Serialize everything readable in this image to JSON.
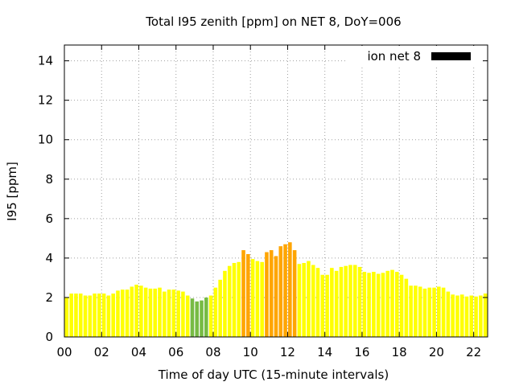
{
  "chart_data": {
    "type": "bar",
    "title": "Total I95 zenith [ppm] on NET 8, DoY=006",
    "xlabel": "Time of day UTC (15-minute intervals)",
    "ylabel": "I95 [ppm]",
    "xlim": [
      0,
      22.75
    ],
    "ylim": [
      0,
      14.8
    ],
    "xticks": [
      0,
      2,
      4,
      6,
      8,
      10,
      12,
      14,
      16,
      18,
      20,
      22
    ],
    "xtick_labels": [
      "00",
      "02",
      "04",
      "06",
      "08",
      "10",
      "12",
      "14",
      "16",
      "18",
      "20",
      "22"
    ],
    "yticks": [
      0,
      2,
      4,
      6,
      8,
      10,
      12,
      14
    ],
    "ytick_labels": [
      "0",
      "2",
      "4",
      "6",
      "8",
      "10",
      "12",
      "14"
    ],
    "grid": true,
    "legend": {
      "label": "ion net 8",
      "color": "#000000",
      "position": "top-right"
    },
    "bin_hours": 0.25,
    "colors": {
      "yellow": "#ffff00",
      "yellow_light": "#ffff33",
      "green": "#77bb44",
      "orange": "#ffa500"
    },
    "series": [
      {
        "name": "ion net 8",
        "x": [
          0,
          0.25,
          0.5,
          0.75,
          1,
          1.25,
          1.5,
          1.75,
          2,
          2.25,
          2.5,
          2.75,
          3,
          3.25,
          3.5,
          3.75,
          4,
          4.25,
          4.5,
          4.75,
          5,
          5.25,
          5.5,
          5.75,
          6,
          6.25,
          6.5,
          6.75,
          7,
          7.25,
          7.5,
          7.75,
          8,
          8.25,
          8.5,
          8.75,
          9,
          9.25,
          9.5,
          9.75,
          10,
          10.25,
          10.5,
          10.75,
          11,
          11.25,
          11.5,
          11.75,
          12,
          12.25,
          12.5,
          12.75,
          13,
          13.25,
          13.5,
          13.75,
          14,
          14.25,
          14.5,
          14.75,
          15,
          15.25,
          15.5,
          15.75,
          16,
          16.25,
          16.5,
          16.75,
          17,
          17.25,
          17.5,
          17.75,
          18,
          18.25,
          18.5,
          18.75,
          19,
          19.25,
          19.5,
          19.75,
          20,
          20.25,
          20.5,
          20.75,
          21,
          21.25,
          21.5,
          21.75,
          22,
          22.25,
          22.5
        ],
        "values": [
          2.0,
          2.2,
          2.2,
          2.2,
          2.1,
          2.1,
          2.2,
          2.2,
          2.2,
          2.1,
          2.2,
          2.35,
          2.4,
          2.4,
          2.55,
          2.65,
          2.6,
          2.5,
          2.45,
          2.45,
          2.5,
          2.3,
          2.4,
          2.4,
          2.35,
          2.3,
          2.1,
          1.95,
          1.8,
          1.85,
          2.0,
          2.1,
          2.5,
          2.9,
          3.35,
          3.6,
          3.75,
          3.8,
          4.4,
          4.2,
          3.95,
          3.85,
          3.8,
          4.3,
          4.4,
          4.1,
          4.6,
          4.7,
          4.8,
          4.4,
          3.7,
          3.75,
          3.85,
          3.65,
          3.5,
          3.15,
          3.15,
          3.5,
          3.35,
          3.55,
          3.6,
          3.65,
          3.65,
          3.55,
          3.3,
          3.25,
          3.3,
          3.2,
          3.25,
          3.35,
          3.4,
          3.3,
          3.15,
          2.95,
          2.6,
          2.6,
          2.55,
          2.45,
          2.5,
          2.5,
          2.55,
          2.5,
          2.3,
          2.15,
          2.1,
          2.15,
          2.05,
          2.1,
          2.05,
          2.1,
          2.2
        ],
        "bar_colors": [
          "yellow",
          "yellow",
          "yellow",
          "yellow",
          "yellow",
          "yellow",
          "yellow",
          "yellow",
          "yellow",
          "yellow",
          "yellow",
          "yellow",
          "yellow",
          "yellow",
          "yellow",
          "yellow",
          "yellow",
          "yellow",
          "yellow",
          "yellow",
          "yellow",
          "yellow",
          "yellow",
          "yellow",
          "yellow",
          "yellow",
          "yellow",
          "green",
          "green",
          "green",
          "green",
          "yellow",
          "yellow",
          "yellow",
          "yellow",
          "yellow",
          "yellow",
          "yellow",
          "orange",
          "orange",
          "yellow",
          "yellow",
          "yellow",
          "orange",
          "orange",
          "orange",
          "orange",
          "orange",
          "orange",
          "orange",
          "yellow",
          "yellow",
          "yellow",
          "yellow",
          "yellow",
          "yellow",
          "yellow",
          "yellow",
          "yellow",
          "yellow",
          "yellow",
          "yellow",
          "yellow",
          "yellow",
          "yellow",
          "yellow",
          "yellow",
          "yellow",
          "yellow",
          "yellow",
          "yellow",
          "yellow",
          "yellow",
          "yellow",
          "yellow",
          "yellow",
          "yellow",
          "yellow",
          "yellow",
          "yellow",
          "yellow",
          "yellow",
          "yellow",
          "yellow",
          "yellow",
          "yellow",
          "yellow",
          "yellow",
          "yellow",
          "yellow",
          "yellow"
        ]
      }
    ]
  }
}
